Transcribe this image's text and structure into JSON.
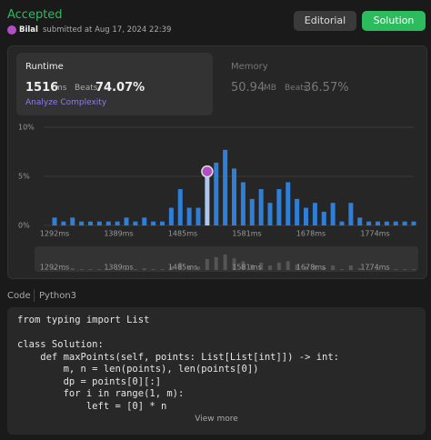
{
  "header": {
    "status": "Accepted",
    "user": "Bilal",
    "submitted": "submitted at Aug 17, 2024 22:39",
    "buttons": [
      "Editorial",
      "Solution"
    ]
  },
  "runtime": {
    "label": "Runtime",
    "value": "1516",
    "unit": "ms",
    "beats_label": "Beats",
    "beats": "74.07%",
    "analyze": "Analyze Complexity"
  },
  "memory": {
    "label": "Memory",
    "value": "50.94",
    "unit": "MB",
    "beats_label": "Beats",
    "beats": "36.57%"
  },
  "chart": {
    "type": "bar",
    "color": "#2f7fd8",
    "highlight_color": "#a8c8f0",
    "values": [
      0.8,
      0.4,
      0.8,
      0.4,
      0.4,
      0.4,
      0.4,
      0.4,
      0.8,
      0.4,
      0.8,
      0.4,
      0.4,
      1.8,
      3.7,
      1.8,
      1.8,
      5.5,
      6.4,
      7.7,
      5.8,
      4.4,
      2.7,
      3.7,
      2.3,
      3.7,
      4.4,
      2.7,
      1.8,
      2.3,
      1.4,
      2.3,
      0.4,
      2.3,
      0.8,
      0.4,
      0.4,
      0.4,
      0.4,
      0.4,
      0.4
    ],
    "highlight": 17,
    "ylim": [
      0,
      10
    ],
    "yticks": [
      {
        "value": 0,
        "label": "0%"
      },
      {
        "value": 5,
        "label": "5%"
      },
      {
        "value": 10,
        "label": "10%"
      }
    ],
    "xlabels": [
      "1292ms",
      "1389ms",
      "1485ms",
      "1581ms",
      "1678ms",
      "1774ms"
    ]
  },
  "code": {
    "title": "Code",
    "language": "Python3",
    "lines": [
      "from typing import List",
      "",
      "class Solution:",
      "    def maxPoints(self, points: List[List[int]]) -> int:",
      "        m, n = len(points), len(points[0])",
      "        dp = points[0][:]",
      "        for i in range(1, m):",
      "            left = [0] * n"
    ],
    "more": "View more"
  }
}
